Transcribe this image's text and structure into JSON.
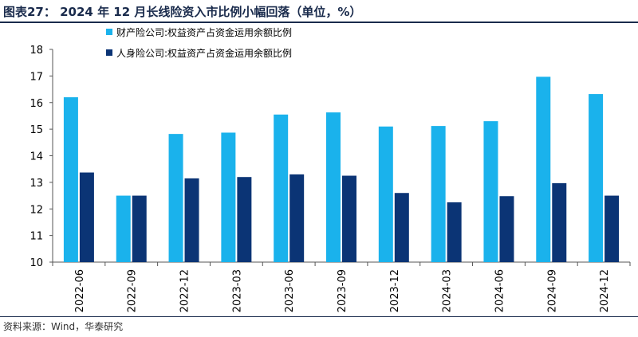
{
  "header": {
    "title": "图表27：  2024 年 12 月长线险资入市比例小幅回落（单位，%）"
  },
  "footer": {
    "source": "资料来源：Wind，华泰研究"
  },
  "chart_data": {
    "type": "bar",
    "categories": [
      "2022-06",
      "2022-09",
      "2022-12",
      "2023-03",
      "2023-06",
      "2023-09",
      "2023-12",
      "2024-03",
      "2024-06",
      "2024-09",
      "2024-12"
    ],
    "series": [
      {
        "name": "财产险公司:权益资产占资金运用余额比例",
        "color": "#1ab2ec",
        "values": [
          16.2,
          12.5,
          14.82,
          14.87,
          15.55,
          15.63,
          15.1,
          15.12,
          15.3,
          16.97,
          16.32
        ]
      },
      {
        "name": "人身险公司:权益资产占资金运用余额比例",
        "color": "#0b3475",
        "values": [
          13.37,
          12.5,
          13.15,
          13.2,
          13.3,
          13.25,
          12.6,
          12.25,
          12.48,
          12.97,
          12.5
        ]
      }
    ],
    "ylim": [
      10,
      18
    ],
    "yticks": [
      "10",
      "11",
      "12",
      "13",
      "14",
      "15",
      "16",
      "17",
      "18"
    ],
    "legend_position": "top-left",
    "grid": false
  }
}
